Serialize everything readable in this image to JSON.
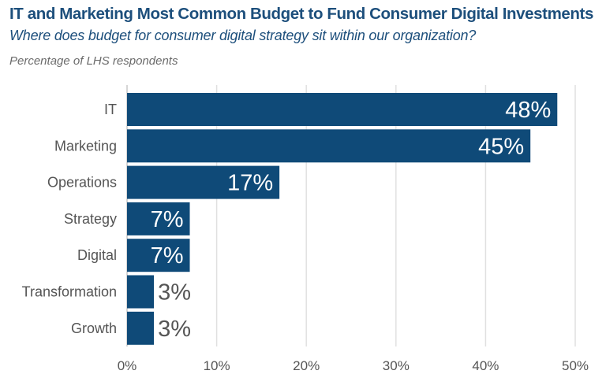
{
  "chart_data": {
    "type": "bar",
    "orientation": "horizontal",
    "title": "IT and Marketing Most Common Budget to Fund Consumer Digital Investments",
    "subtitle": "Where does budget for consumer digital strategy sit within our organization?",
    "unit_label": "Percentage of LHS respondents",
    "categories": [
      "IT",
      "Marketing",
      "Operations",
      "Strategy",
      "Digital",
      "Transformation",
      "Growth"
    ],
    "values": [
      48,
      45,
      17,
      7,
      7,
      3,
      3
    ],
    "value_labels": [
      "48%",
      "45%",
      "17%",
      "7%",
      "7%",
      "3%",
      "3%"
    ],
    "xlabel": "",
    "ylabel": "",
    "xlim": [
      0,
      50
    ],
    "xticks": [
      0,
      10,
      20,
      30,
      40,
      50
    ],
    "xtick_labels": [
      "0%",
      "10%",
      "20%",
      "30%",
      "40%",
      "50%"
    ],
    "grid": "vertical",
    "legend": "none",
    "bar_color": "#0f4a78"
  }
}
